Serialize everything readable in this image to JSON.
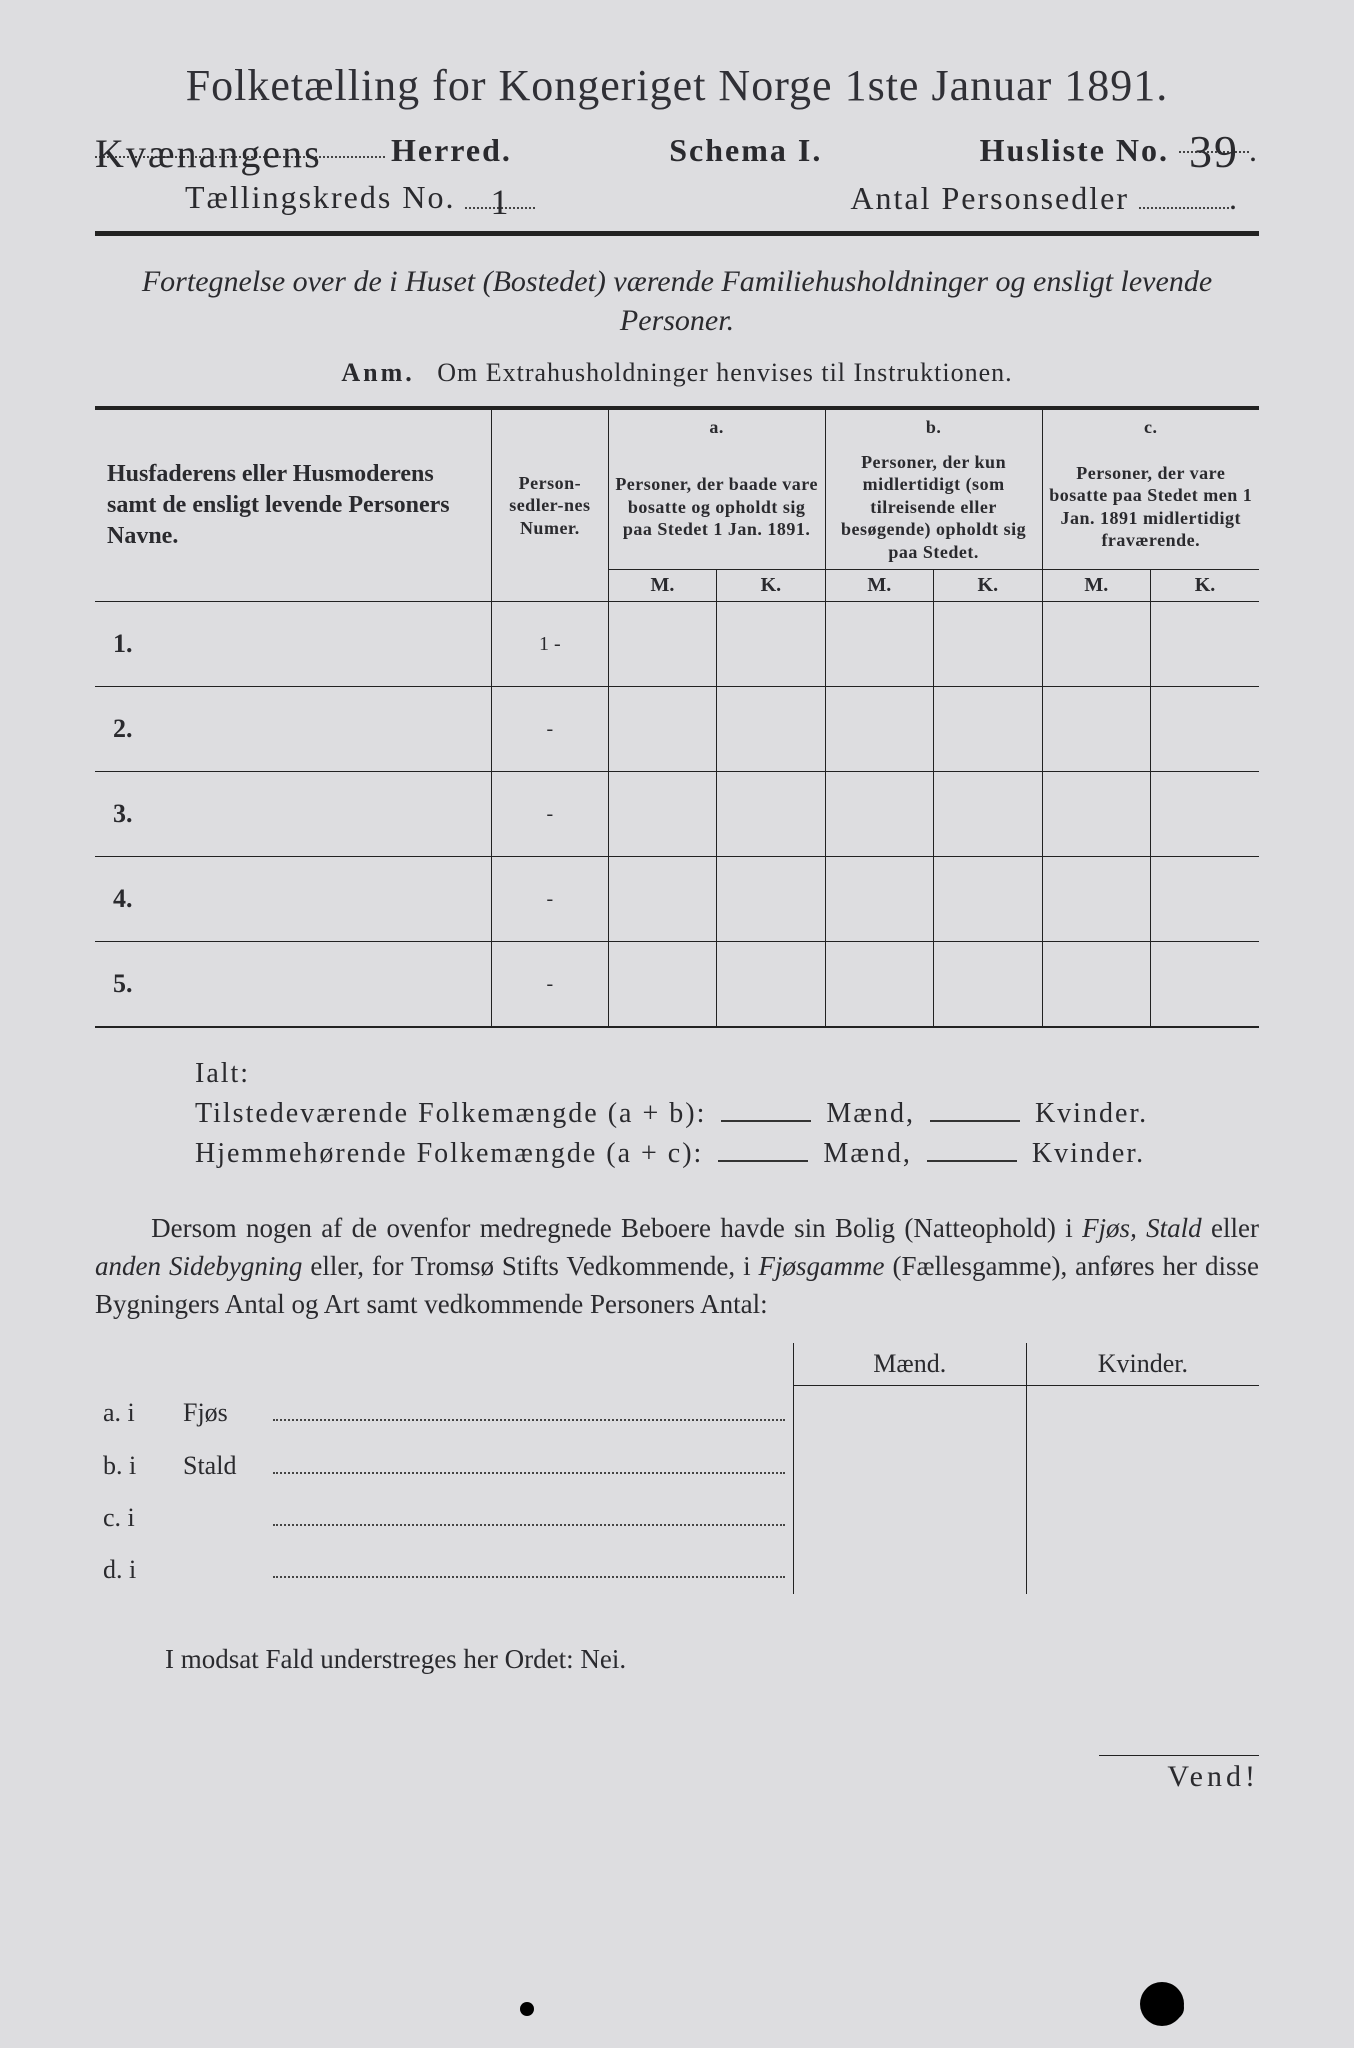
{
  "title": "Folketælling for Kongeriget Norge 1ste Januar 1891.",
  "line2": {
    "herred_hand": "Kvænangens",
    "herred_label": "Herred.",
    "schema": "Schema I.",
    "husliste_label": "Husliste No.",
    "husliste_no_hand": "39",
    "dot": "."
  },
  "line3": {
    "kreds_label": "Tællingskreds No.",
    "kreds_hand": "1",
    "antal_label": "Antal Personsedler",
    "antal_dot": "."
  },
  "fortegnelse": "Fortegnelse over de i Huset (Bostedet) værende Familiehusholdninger og ensligt levende Personer.",
  "anm_bold": "Anm.",
  "anm_rest": "Om Extrahusholdninger henvises til Instruktionen.",
  "table": {
    "col_names": "Husfaderens eller Husmoderens samt de ensligt levende Personers Navne.",
    "col_person": "Person-sedler-nes Numer.",
    "col_a_label": "a.",
    "col_a": "Personer, der baade vare bosatte og opholdt sig paa Stedet 1 Jan. 1891.",
    "col_b_label": "b.",
    "col_b": "Personer, der kun midlertidigt (som tilreisende eller besøgende) opholdt sig paa Stedet.",
    "col_c_label": "c.",
    "col_c": "Personer, der vare bosatte paa Stedet men 1 Jan. 1891 midlertidigt fraværende.",
    "m": "M.",
    "k": "K.",
    "rows": [
      {
        "n": "1.",
        "p": "1 -"
      },
      {
        "n": "2.",
        "p": "-"
      },
      {
        "n": "3.",
        "p": "-"
      },
      {
        "n": "4.",
        "p": "-"
      },
      {
        "n": "5.",
        "p": "-"
      }
    ]
  },
  "ialt": {
    "ialt": "Ialt:",
    "r1a": "Tilstedeværende Folkemængde (a + b):",
    "r2a": "Hjemmehørende Folkemængde (a + c):",
    "maend": "Mænd,",
    "kvinder": "Kvinder."
  },
  "para": "Dersom nogen af de ovenfor medregnede Beboere havde sin Bolig (Natteophold) i Fjøs, Stald eller anden Sidebygning eller, for Tromsø Stifts Vedkommende, i Fjøsgamme (Fællesgamme), anføres her disse Bygningers Antal og Art samt vedkommende Personers Antal:",
  "bygn": {
    "maend": "Mænd.",
    "kvinder": "Kvinder.",
    "rows": [
      {
        "lbl": "a.  i",
        "txt": "Fjøs"
      },
      {
        "lbl": "b.  i",
        "txt": "Stald"
      },
      {
        "lbl": "c.  i",
        "txt": ""
      },
      {
        "lbl": "d.  i",
        "txt": ""
      }
    ]
  },
  "modsat": "I modsat Fald understreges her Ordet: Nei.",
  "vend": "Vend!"
}
